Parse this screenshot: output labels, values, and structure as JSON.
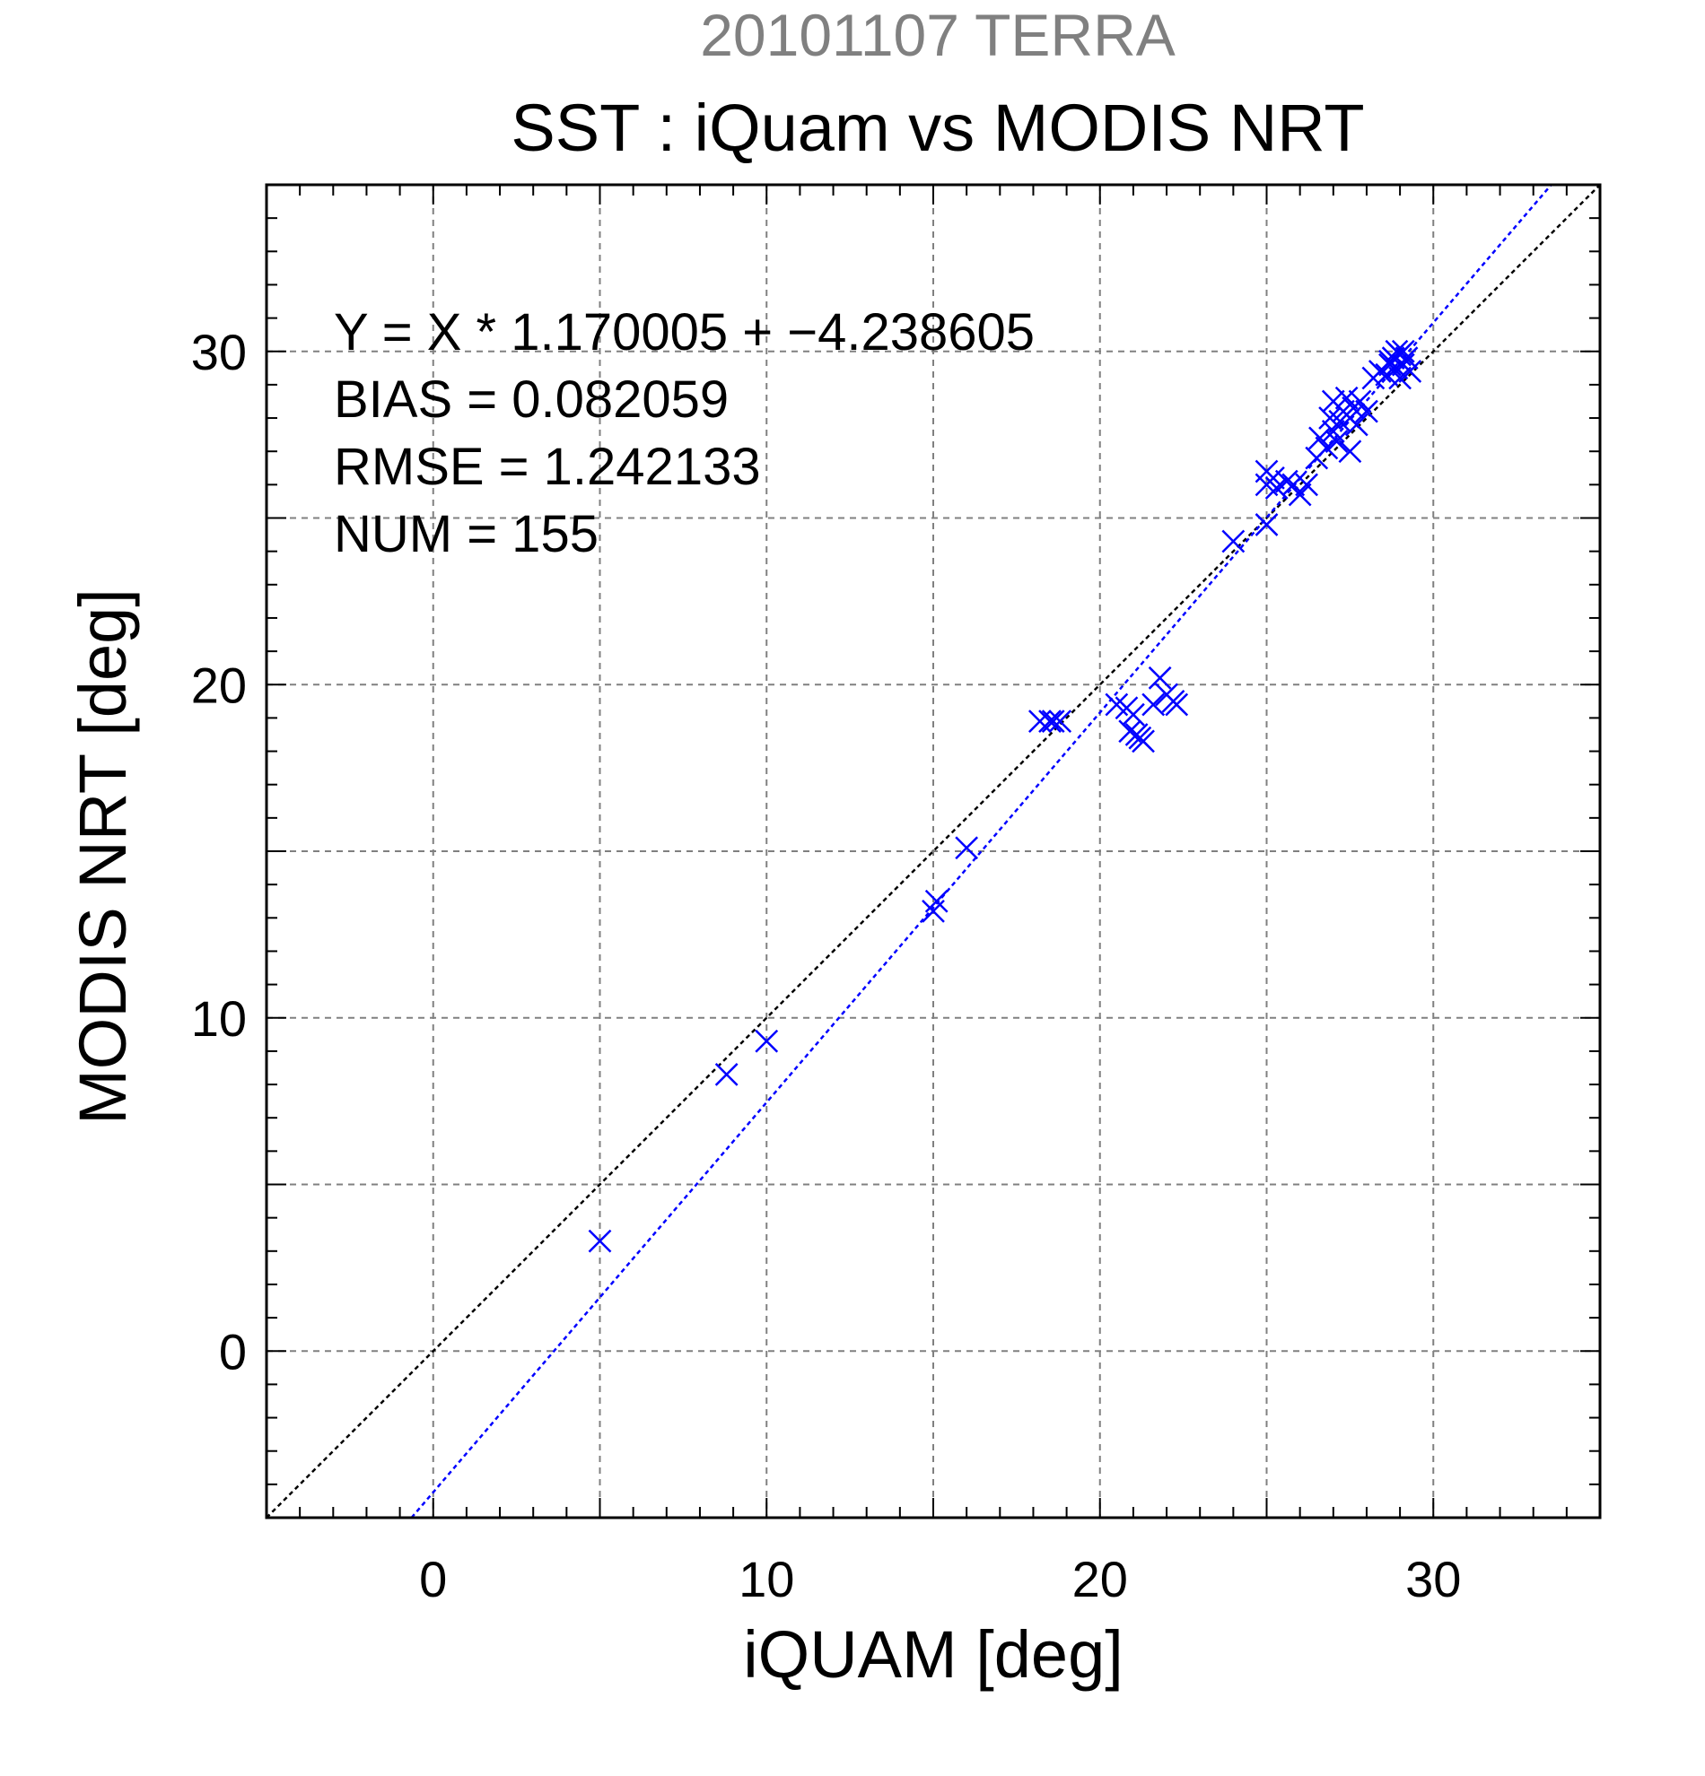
{
  "chart_data": {
    "type": "scatter",
    "supertitle": "20101107 TERRA",
    "title": "SST : iQuam vs MODIS NRT",
    "xlabel": "iQUAM [deg]",
    "ylabel": "MODIS NRT [deg]",
    "xlim": [
      -5,
      35
    ],
    "ylim": [
      -5,
      35
    ],
    "major_ticks": [
      0,
      10,
      20,
      30
    ],
    "tick_labels": [
      "0",
      "10",
      "20",
      "30"
    ],
    "grid_step": 5,
    "minor_tick_step": 1,
    "grid": true,
    "colors": {
      "points": "#0000ff",
      "fit_line": "#0000ff",
      "identity_line": "#000000",
      "supertitle": "#808080",
      "grid": "#808080"
    },
    "stats": {
      "equation": "Y = X * 1.170005 + −4.238605",
      "bias": "BIAS = 0.082059",
      "rmse": "RMSE = 1.242133",
      "num": "NUM = 155"
    },
    "fit": {
      "slope": 1.170005,
      "intercept": -4.238605
    },
    "series": [
      {
        "marker": "x",
        "points": [
          [
            5.0,
            3.3
          ],
          [
            8.8,
            8.3
          ],
          [
            10.0,
            9.3
          ],
          [
            15.0,
            13.2
          ],
          [
            15.1,
            13.5
          ],
          [
            16.0,
            15.1
          ],
          [
            18.2,
            18.9
          ],
          [
            18.5,
            18.9
          ],
          [
            18.6,
            18.9
          ],
          [
            18.8,
            18.9
          ],
          [
            20.5,
            19.4
          ],
          [
            20.8,
            19.3
          ],
          [
            20.9,
            18.6
          ],
          [
            21.0,
            19.1
          ],
          [
            21.1,
            18.5
          ],
          [
            21.2,
            18.4
          ],
          [
            21.3,
            18.3
          ],
          [
            21.6,
            19.4
          ],
          [
            21.8,
            20.2
          ],
          [
            22.0,
            19.7
          ],
          [
            22.2,
            19.5
          ],
          [
            22.3,
            19.4
          ],
          [
            24.0,
            24.3
          ],
          [
            25.0,
            24.8
          ],
          [
            25.0,
            26.4
          ],
          [
            25.0,
            26.0
          ],
          [
            25.2,
            26.2
          ],
          [
            25.3,
            25.9
          ],
          [
            25.6,
            26.1
          ],
          [
            25.8,
            26.0
          ],
          [
            26.0,
            25.7
          ],
          [
            26.2,
            26.0
          ],
          [
            26.5,
            26.8
          ],
          [
            26.6,
            27.4
          ],
          [
            26.8,
            27.1
          ],
          [
            26.9,
            28.0
          ],
          [
            27.0,
            27.6
          ],
          [
            27.0,
            28.5
          ],
          [
            27.1,
            27.3
          ],
          [
            27.2,
            27.9
          ],
          [
            27.3,
            28.2
          ],
          [
            27.4,
            28.6
          ],
          [
            27.5,
            28.0
          ],
          [
            27.5,
            27.0
          ],
          [
            27.6,
            28.3
          ],
          [
            27.7,
            27.8
          ],
          [
            27.8,
            28.5
          ],
          [
            28.0,
            28.2
          ],
          [
            28.2,
            29.2
          ],
          [
            28.4,
            29.4
          ],
          [
            28.6,
            29.3
          ],
          [
            28.7,
            29.6
          ],
          [
            28.8,
            29.8
          ],
          [
            28.9,
            29.5
          ],
          [
            29.0,
            29.9
          ],
          [
            29.0,
            29.2
          ],
          [
            29.1,
            29.6
          ],
          [
            29.2,
            29.8
          ],
          [
            29.3,
            29.4
          ],
          [
            29.1,
            30.0
          ],
          [
            28.9,
            30.0
          ],
          [
            28.7,
            29.7
          ]
        ]
      }
    ]
  }
}
